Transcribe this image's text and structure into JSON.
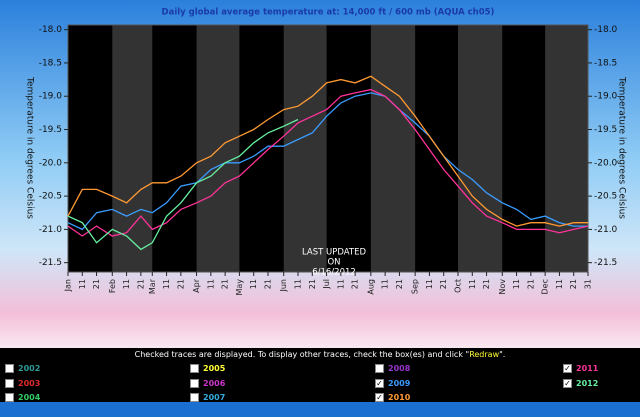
{
  "chart_data": {
    "type": "line",
    "title": "Daily global average temperature at: 14,000 ft / 600 mb (AQUA ch05)",
    "y_label": "Temperature in degrees Celsius",
    "y2_label": "Temperature in degrees Celsius",
    "annotation": [
      "LAST UPDATED",
      "ON",
      "6/16/2012"
    ],
    "x": [
      1,
      11,
      21,
      32,
      42,
      52,
      60,
      70,
      80,
      91,
      101,
      111,
      121,
      131,
      141,
      152,
      162,
      172,
      182,
      192,
      202,
      213,
      223,
      233,
      244,
      254,
      264,
      274,
      284,
      294,
      305,
      315,
      325,
      335,
      345,
      355,
      365
    ],
    "xlim": [
      1,
      365
    ],
    "xticks": [
      {
        "value": 1,
        "label": "Jan"
      },
      11,
      21,
      {
        "value": 32,
        "label": "Feb"
      },
      {
        "value": 42,
        "label": "11"
      },
      {
        "value": 52,
        "label": "21"
      },
      {
        "value": 60,
        "label": "Mar"
      },
      {
        "value": 70,
        "label": "11"
      },
      {
        "value": 80,
        "label": "21"
      },
      {
        "value": 91,
        "label": "Apr"
      },
      {
        "value": 101,
        "label": "11"
      },
      {
        "value": 111,
        "label": "21"
      },
      {
        "value": 121,
        "label": "May"
      },
      {
        "value": 131,
        "label": "11"
      },
      {
        "value": 141,
        "label": "21"
      },
      {
        "value": 152,
        "label": "Jun"
      },
      {
        "value": 162,
        "label": "11"
      },
      {
        "value": 172,
        "label": "21"
      },
      {
        "value": 182,
        "label": "Jul"
      },
      {
        "value": 192,
        "label": "11"
      },
      {
        "value": 202,
        "label": "21"
      },
      {
        "value": 213,
        "label": "Aug"
      },
      {
        "value": 223,
        "label": "11"
      },
      {
        "value": 233,
        "label": "21"
      },
      {
        "value": 244,
        "label": "Sep"
      },
      {
        "value": 254,
        "label": "11"
      },
      {
        "value": 264,
        "label": "21"
      },
      {
        "value": 274,
        "label": "Oct"
      },
      {
        "value": 284,
        "label": "11"
      },
      {
        "value": 294,
        "label": "21"
      },
      {
        "value": 305,
        "label": "Nov"
      },
      {
        "value": 315,
        "label": "11"
      },
      {
        "value": 325,
        "label": "21"
      },
      {
        "value": 335,
        "label": "Dec"
      },
      {
        "value": 345,
        "label": "11"
      },
      {
        "value": 355,
        "label": "21"
      },
      {
        "value": 365,
        "label": "31"
      }
    ],
    "ylim": [
      -21.64,
      -17.93
    ],
    "yticks": [
      {
        "value": -18,
        "label": "-18.0"
      },
      -18.5,
      {
        "value": -19,
        "label": "-19.0"
      },
      -19.5,
      {
        "value": -20,
        "label": "-20.0"
      },
      -20.5,
      {
        "value": -21,
        "label": "-21.0"
      },
      -21.5
    ],
    "series": [
      {
        "name": "2009",
        "color": "#3a9cff",
        "values": [
          -20.9,
          -21.0,
          -20.75,
          -20.7,
          -20.8,
          -20.7,
          -20.75,
          -20.6,
          -20.35,
          -20.3,
          -20.1,
          -20.0,
          -20.0,
          -19.9,
          -19.75,
          -19.75,
          -19.65,
          -19.55,
          -19.3,
          -19.1,
          -19.0,
          -18.95,
          -19.0,
          -19.2,
          -19.4,
          -19.6,
          -19.9,
          -20.1,
          -20.25,
          -20.45,
          -20.6,
          -20.7,
          -20.85,
          -20.8,
          -20.9,
          -20.95,
          -20.95
        ]
      },
      {
        "name": "2010",
        "color": "#ff9933",
        "values": [
          -20.8,
          -20.4,
          -20.4,
          -20.5,
          -20.6,
          -20.4,
          -20.3,
          -20.3,
          -20.2,
          -20.0,
          -19.9,
          -19.7,
          -19.6,
          -19.5,
          -19.35,
          -19.2,
          -19.15,
          -19.0,
          -18.8,
          -18.75,
          -18.8,
          -18.7,
          -18.85,
          -19.0,
          -19.3,
          -19.6,
          -19.9,
          -20.2,
          -20.5,
          -20.7,
          -20.85,
          -20.95,
          -20.9,
          -20.9,
          -20.95,
          -20.9,
          -20.9
        ]
      },
      {
        "name": "2011",
        "color": "#ff3399",
        "values": [
          -20.95,
          -21.1,
          -20.95,
          -21.1,
          -21.05,
          -20.8,
          -21.0,
          -20.9,
          -20.7,
          -20.6,
          -20.5,
          -20.3,
          -20.2,
          -20.0,
          -19.8,
          -19.6,
          -19.4,
          -19.3,
          -19.2,
          -19.0,
          -18.95,
          -18.9,
          -19.0,
          -19.2,
          -19.5,
          -19.8,
          -20.1,
          -20.35,
          -20.6,
          -20.8,
          -20.9,
          -21.0,
          -21.0,
          -21.0,
          -21.05,
          -21.0,
          -20.95
        ]
      },
      {
        "name": "2012",
        "color": "#66f0a0",
        "values": [
          -20.8,
          -20.9,
          -21.2,
          -21.0,
          -21.1,
          -21.3,
          -21.2,
          -20.8,
          -20.6,
          -20.3,
          -20.2,
          -20.0,
          -19.9,
          -19.7,
          -19.55,
          -19.45,
          -19.35,
          null,
          null,
          null,
          null,
          null,
          null,
          null,
          null,
          null,
          null,
          null,
          null,
          null,
          null,
          null,
          null,
          null,
          null,
          null,
          null
        ]
      }
    ]
  },
  "controls": {
    "instruction_before": "Checked traces are displayed. To display other traces, check the box(es) and click \"",
    "redraw": "Redraw",
    "instruction_after": "\".",
    "unchecked": [
      {
        "label": "2002",
        "color": "#2f9a9a"
      },
      {
        "label": "2003",
        "color": "#e02a2a"
      },
      {
        "label": "2004",
        "color": "#33cc66"
      },
      {
        "label": "2005",
        "color": "#ffff33"
      },
      {
        "label": "2006",
        "color": "#cc33cc"
      },
      {
        "label": "2007",
        "color": "#33aadd"
      },
      {
        "label": "2008",
        "color": "#9933cc"
      }
    ]
  }
}
